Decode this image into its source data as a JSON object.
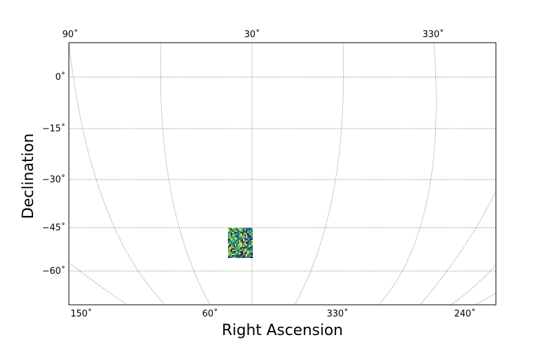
{
  "chart_data": {
    "type": "heatmap",
    "projection": "orthographic",
    "xlabel": "Right Ascension",
    "ylabel": "Declination",
    "top_ra_ticks": [
      "90˚",
      "30˚",
      "330˚"
    ],
    "bottom_ra_ticks": [
      "150˚",
      "60˚",
      "330˚",
      "240˚"
    ],
    "dec_ticks": [
      {
        "value": 0,
        "label": "0˚"
      },
      {
        "value": -15,
        "label": "−15˚"
      },
      {
        "value": -30,
        "label": "−30˚"
      },
      {
        "value": -45,
        "label": "−45˚"
      },
      {
        "value": -60,
        "label": "−60˚"
      }
    ],
    "grid": true,
    "colormap": [
      "#440154",
      "#3b528b",
      "#21908d",
      "#5dc962",
      "#fde725"
    ],
    "footprint": {
      "ra_range": [
        30,
        37
      ],
      "dec_range": [
        -54,
        -45
      ]
    }
  }
}
